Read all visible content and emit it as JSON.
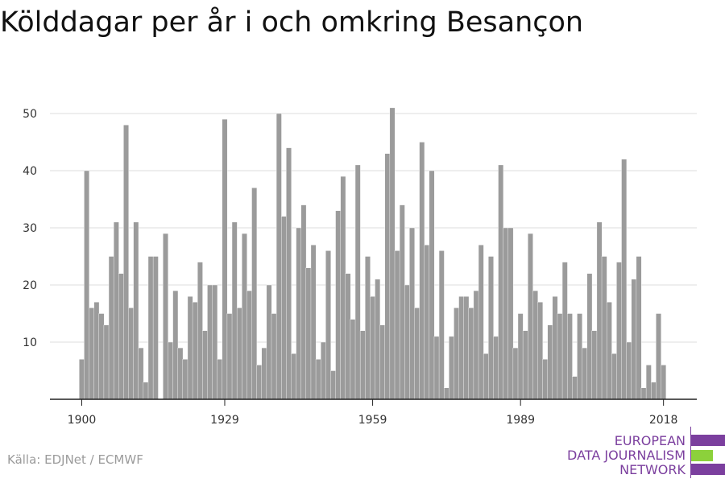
{
  "page": {
    "title": "Kölddagar per år i och omkring Besançon",
    "source": "Källa: EDJNet / ECMWF"
  },
  "logo": {
    "lines": [
      "EUROPEAN",
      "DATA JOURNALISM",
      "NETWORK"
    ],
    "text_color": "#7b3f9e",
    "bar_colors": [
      "#7b3f9e",
      "#8cd13b",
      "#7b3f9e"
    ]
  },
  "chart_data": {
    "type": "bar",
    "title": "Kölddagar per år i och omkring Besançon",
    "xlabel": "",
    "ylabel": "",
    "bar_color": "#9b9b9b",
    "grid": true,
    "xticks": [
      1900,
      1929,
      1959,
      1989,
      2018
    ],
    "yticks": [
      10,
      20,
      30,
      40,
      50
    ],
    "ylim": [
      0,
      50
    ],
    "x": [
      1900,
      1901,
      1902,
      1903,
      1904,
      1905,
      1906,
      1907,
      1908,
      1909,
      1910,
      1911,
      1912,
      1913,
      1914,
      1915,
      1916,
      1917,
      1918,
      1919,
      1920,
      1921,
      1922,
      1923,
      1924,
      1925,
      1926,
      1927,
      1928,
      1929,
      1930,
      1931,
      1932,
      1933,
      1934,
      1935,
      1936,
      1937,
      1938,
      1939,
      1940,
      1941,
      1942,
      1943,
      1944,
      1945,
      1946,
      1947,
      1948,
      1949,
      1950,
      1951,
      1952,
      1953,
      1954,
      1955,
      1956,
      1957,
      1958,
      1959,
      1960,
      1961,
      1962,
      1963,
      1964,
      1965,
      1966,
      1967,
      1968,
      1969,
      1970,
      1971,
      1972,
      1973,
      1974,
      1975,
      1976,
      1977,
      1978,
      1979,
      1980,
      1981,
      1982,
      1983,
      1984,
      1985,
      1986,
      1987,
      1988,
      1989,
      1990,
      1991,
      1992,
      1993,
      1994,
      1995,
      1996,
      1997,
      1998,
      1999,
      2000,
      2001,
      2002,
      2003,
      2004,
      2005,
      2006,
      2007,
      2008,
      2009,
      2010,
      2011,
      2012,
      2013,
      2014,
      2015,
      2016,
      2017,
      2018
    ],
    "values": [
      7,
      40,
      16,
      17,
      15,
      13,
      25,
      31,
      22,
      48,
      16,
      31,
      9,
      3,
      25,
      25,
      0,
      29,
      10,
      19,
      9,
      7,
      18,
      17,
      24,
      12,
      20,
      20,
      7,
      49,
      15,
      31,
      16,
      29,
      19,
      37,
      6,
      9,
      20,
      15,
      50,
      32,
      44,
      8,
      30,
      34,
      23,
      27,
      7,
      10,
      26,
      5,
      33,
      39,
      22,
      14,
      41,
      12,
      25,
      18,
      21,
      13,
      43,
      51,
      26,
      34,
      20,
      30,
      16,
      45,
      27,
      40,
      11,
      26,
      2,
      11,
      16,
      18,
      18,
      16,
      19,
      27,
      8,
      25,
      11,
      41,
      30,
      30,
      9,
      15,
      12,
      29,
      19,
      17,
      7,
      13,
      18,
      15,
      24,
      15,
      4,
      15,
      9,
      22,
      12,
      31,
      25,
      17,
      8,
      24,
      42,
      10,
      21,
      25,
      2,
      6,
      3,
      15,
      6
    ]
  }
}
